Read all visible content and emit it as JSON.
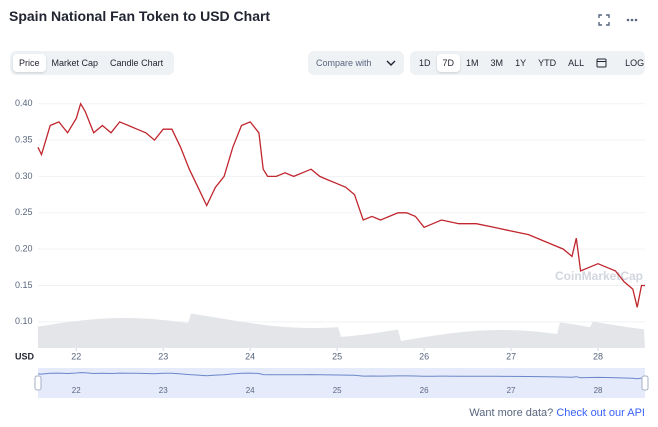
{
  "header": {
    "title": "Spain National Fan Token to USD Chart"
  },
  "tabs": [
    "Price",
    "Market Cap",
    "Candle Chart"
  ],
  "active_tab": "Price",
  "compare": "Compare with",
  "ranges": [
    "1D",
    "7D",
    "1M",
    "3M",
    "1Y",
    "YTD",
    "ALL"
  ],
  "active_range": "7D",
  "log_button": "LOG",
  "chart_data": {
    "type": "line",
    "color": "#c0262d",
    "y_label": "USD",
    "watermark": "CoinMarketCap",
    "x": [
      21.56,
      21.6,
      21.7,
      21.8,
      21.9,
      22.0,
      22.05,
      22.1,
      22.2,
      22.3,
      22.4,
      22.5,
      22.6,
      22.7,
      22.8,
      22.9,
      23.0,
      23.1,
      23.2,
      23.3,
      23.4,
      23.5,
      23.6,
      23.7,
      23.8,
      23.9,
      24.0,
      24.1,
      24.15,
      24.2,
      24.3,
      24.4,
      24.5,
      24.6,
      24.7,
      24.8,
      24.9,
      25.0,
      25.1,
      25.2,
      25.3,
      25.4,
      25.5,
      25.6,
      25.7,
      25.8,
      25.9,
      26.0,
      26.1,
      26.2,
      26.4,
      26.6,
      26.8,
      27.0,
      27.2,
      27.4,
      27.6,
      27.7,
      27.75,
      27.8,
      27.9,
      28.0,
      28.1,
      28.2,
      28.3,
      28.4,
      28.45,
      28.5,
      28.54
    ],
    "values": [
      0.34,
      0.33,
      0.37,
      0.375,
      0.36,
      0.38,
      0.4,
      0.39,
      0.36,
      0.37,
      0.36,
      0.375,
      0.37,
      0.365,
      0.36,
      0.35,
      0.365,
      0.365,
      0.34,
      0.31,
      0.285,
      0.26,
      0.285,
      0.3,
      0.34,
      0.37,
      0.375,
      0.36,
      0.31,
      0.3,
      0.3,
      0.305,
      0.3,
      0.305,
      0.31,
      0.3,
      0.295,
      0.29,
      0.285,
      0.275,
      0.24,
      0.245,
      0.24,
      0.245,
      0.25,
      0.25,
      0.245,
      0.23,
      0.235,
      0.24,
      0.235,
      0.235,
      0.23,
      0.225,
      0.22,
      0.21,
      0.2,
      0.19,
      0.215,
      0.17,
      0.175,
      0.18,
      0.175,
      0.17,
      0.155,
      0.145,
      0.12,
      0.15,
      0.15
    ],
    "xlim": [
      21.56,
      28.54
    ],
    "ylim": [
      0.064,
      0.412
    ],
    "xticks": [
      22,
      23,
      24,
      25,
      26,
      27,
      28
    ],
    "yticks": [
      {
        "value": 0.1,
        "label": "0.10"
      },
      0.15,
      {
        "value": 0.2,
        "label": "0.20"
      },
      0.25,
      {
        "value": 0.3,
        "label": "0.30"
      },
      0.35,
      {
        "value": 0.4,
        "label": "0.40"
      }
    ],
    "grid": true
  },
  "footer": {
    "text": "Want more data?",
    "link": "Check out our API"
  }
}
